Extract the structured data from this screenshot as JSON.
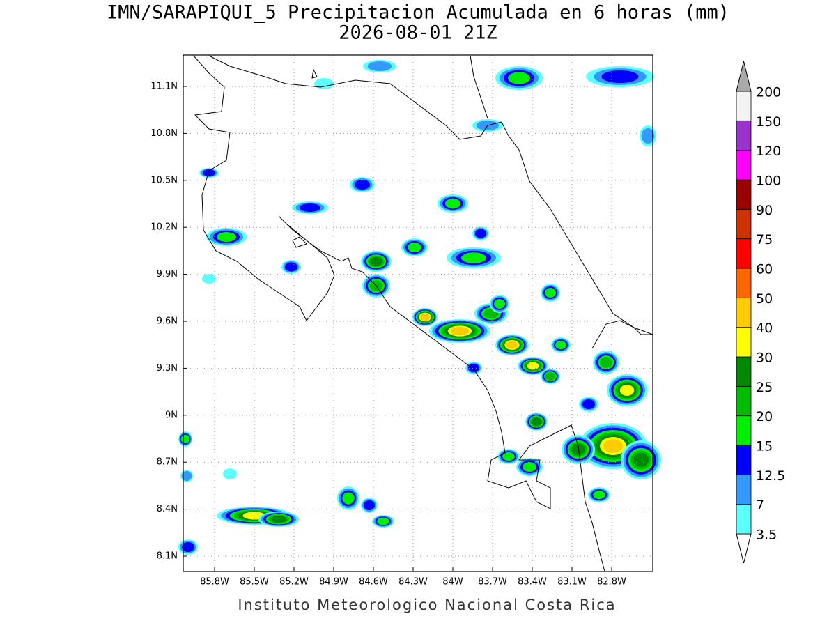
{
  "title": "IMN/SARAPIQUI_5 Precipitacion Acumulada en 6 horas (mm)",
  "subtitle": "2026-08-01 21Z",
  "map": {
    "lon_ticks": [
      "85.8W",
      "85.5W",
      "85.2W",
      "84.9W",
      "84.6W",
      "84.3W",
      "84W",
      "83.7W",
      "83.4W",
      "83.1W",
      "82.8W"
    ],
    "lat_ticks": [
      "11.1N",
      "10.8N",
      "10.5N",
      "10.2N",
      "9.9N",
      "9.6N",
      "9.3N",
      "9N",
      "8.7N",
      "8.4N",
      "8.1N"
    ]
  },
  "colorbar": {
    "levels": [
      3.5,
      7,
      12.5,
      15,
      20,
      25,
      30,
      40,
      50,
      60,
      75,
      90,
      100,
      120,
      150,
      200
    ],
    "colors": [
      "#ffffff",
      "#5effff",
      "#3399ff",
      "#0000ff",
      "#00ee00",
      "#00bb00",
      "#008800",
      "#ffff00",
      "#ffcc00",
      "#ff6600",
      "#ff0000",
      "#cc3300",
      "#990000",
      "#ff00ff",
      "#9933cc",
      "#f2f2f2",
      "#aaaaaa"
    ]
  },
  "footer": "Instituto Meteorologico Nacional Costa Rica"
}
